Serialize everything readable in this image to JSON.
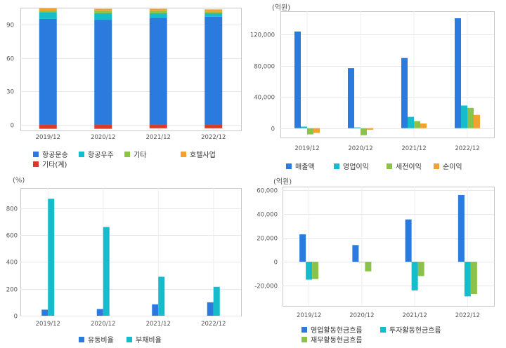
{
  "colors": {
    "blue": "#2b7ade",
    "cyan": "#17bccc",
    "green": "#8bc34a",
    "orange": "#f2a230",
    "red": "#d93a2b"
  },
  "chart_data": [
    {
      "id": "segment-share",
      "type": "bar",
      "stacked": true,
      "unit": "",
      "categories": [
        "2019/12",
        "2020/12",
        "2021/12",
        "2022/12"
      ],
      "ylim": [
        -5,
        105
      ],
      "yticks": [
        0,
        30,
        60,
        90
      ],
      "grid": true,
      "legend": "bottom",
      "series": [
        {
          "name": "항공운송",
          "color": "#2b7ade",
          "values": [
            95,
            94,
            96,
            97
          ]
        },
        {
          "name": "항공우주",
          "color": "#17bccc",
          "values": [
            6,
            6,
            4,
            3
          ]
        },
        {
          "name": "기타",
          "color": "#8bc34a",
          "values": [
            1.5,
            2,
            2,
            1.5
          ]
        },
        {
          "name": "호텔사업",
          "color": "#f2a230",
          "values": [
            2,
            2,
            2,
            2
          ]
        },
        {
          "name": "기타(계)",
          "color": "#d93a2b",
          "values": [
            -3.5,
            -3.5,
            -3,
            -3
          ]
        }
      ]
    },
    {
      "id": "income",
      "type": "bar",
      "unit": "(억원)",
      "categories": [
        "2019/12",
        "2020/12",
        "2021/12",
        "2022/12"
      ],
      "ylim": [
        -12000,
        150000
      ],
      "yticks": [
        0,
        40000,
        80000,
        120000
      ],
      "ytick_labels": [
        "0",
        "40,000",
        "80,000",
        "120,000"
      ],
      "grid": true,
      "legend": "bottom",
      "series": [
        {
          "name": "매출액",
          "color": "#2b7ade",
          "values": [
            124000,
            77000,
            90000,
            141000
          ]
        },
        {
          "name": "영업이익",
          "color": "#17bccc",
          "values": [
            2000,
            1000,
            14500,
            29000
          ]
        },
        {
          "name": "세전이익",
          "color": "#8bc34a",
          "values": [
            -8000,
            -9000,
            9000,
            26000
          ]
        },
        {
          "name": "순이익",
          "color": "#f2a230",
          "values": [
            -6000,
            -2000,
            6000,
            17000
          ]
        }
      ]
    },
    {
      "id": "ratios",
      "type": "bar",
      "unit": "(%)",
      "categories": [
        "2019/12",
        "2020/12",
        "2021/12",
        "2022/12"
      ],
      "ylim": [
        0,
        950
      ],
      "yticks": [
        0,
        200,
        400,
        600,
        800
      ],
      "ytick_labels": [
        "0",
        "200",
        "400",
        "600",
        "800"
      ],
      "grid": true,
      "legend": "bottom",
      "series": [
        {
          "name": "유동비율",
          "color": "#2b7ade",
          "values": [
            45,
            50,
            85,
            100
          ]
        },
        {
          "name": "부채비율",
          "color": "#17bccc",
          "values": [
            870,
            660,
            290,
            215
          ]
        }
      ]
    },
    {
      "id": "cash-flow",
      "type": "bar",
      "unit": "(억원)",
      "categories": [
        "2019/12",
        "2020/12",
        "2021/12",
        "2022/12"
      ],
      "ylim": [
        -37000,
        63000
      ],
      "yticks": [
        -20000,
        0,
        20000,
        40000,
        60000
      ],
      "ytick_labels": [
        "-20,000",
        "0",
        "20,000",
        "40,000",
        "60,000"
      ],
      "grid": true,
      "legend": "bottom",
      "series": [
        {
          "name": "영업활동현금흐름",
          "color": "#2b7ade",
          "values": [
            23000,
            14000,
            35500,
            56000
          ]
        },
        {
          "name": "투자활동현금흐름",
          "color": "#17bccc",
          "values": [
            -15000,
            0,
            -24000,
            -29000
          ]
        },
        {
          "name": "재무활동현금흐름",
          "color": "#8bc34a",
          "values": [
            -14500,
            -8000,
            -12000,
            -27000
          ]
        }
      ]
    }
  ]
}
